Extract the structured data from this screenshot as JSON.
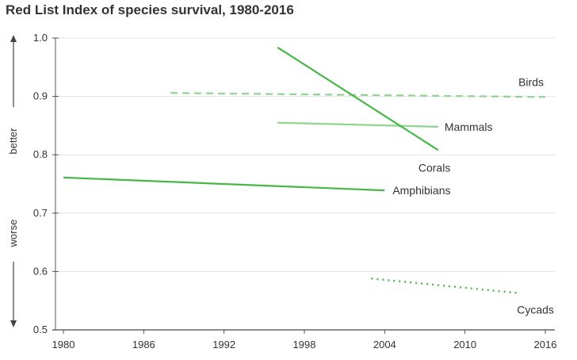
{
  "chart_data": {
    "type": "line",
    "title": "Red List Index of species survival, 1980-2016",
    "y_annotation_up": "better",
    "y_annotation_down": "worse",
    "xlim": [
      1980,
      2016
    ],
    "ylim": [
      0.5,
      1.0
    ],
    "x_ticks": [
      1980,
      1986,
      1992,
      1998,
      2004,
      2010,
      2016
    ],
    "y_ticks": [
      0.5,
      0.6,
      0.7,
      0.8,
      0.9,
      1.0
    ],
    "y_tick_labels": [
      "0.5",
      "0.6",
      "0.7",
      "0.8",
      "0.9",
      "1.0"
    ],
    "grid": "horizontal",
    "series": [
      {
        "name": "Birds",
        "style": "dashed",
        "color": "#8fd48f",
        "x": [
          1988,
          2016
        ],
        "y": [
          0.906,
          0.899
        ]
      },
      {
        "name": "Mammals",
        "style": "solid",
        "color": "#8fd48f",
        "x": [
          1996,
          2008
        ],
        "y": [
          0.855,
          0.848
        ]
      },
      {
        "name": "Corals",
        "style": "solid",
        "color": "#46b846",
        "x": [
          1996,
          2008
        ],
        "y": [
          0.984,
          0.808
        ]
      },
      {
        "name": "Amphibians",
        "style": "solid",
        "color": "#46b846",
        "x": [
          1980,
          2004
        ],
        "y": [
          0.761,
          0.739
        ]
      },
      {
        "name": "Cycads",
        "style": "dotted",
        "color": "#46b846",
        "x": [
          2003,
          2014
        ],
        "y": [
          0.588,
          0.563
        ]
      }
    ]
  }
}
